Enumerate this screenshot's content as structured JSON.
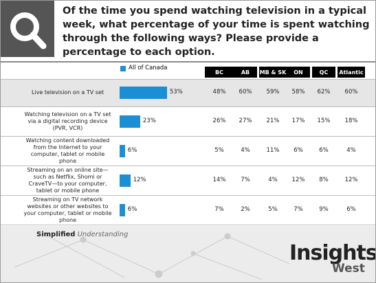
{
  "header": {
    "title": "Of the time you spend watching television in a typical week, what percentage of your time is spent watching through the following ways? Please provide a percentage to each option."
  },
  "chart_data": {
    "type": "bar",
    "orientation": "horizontal",
    "categories": [
      "Live television on a TV set",
      "Watching television on a TV set via a digital recording device (PVR, VCR)",
      "Watching content downloaded from the Internet to your computer, tablet or mobile phone",
      "Streaming on an online site—such as Netflix, Shomi or CraveTV—to your computer, tablet or mobile phone",
      "Streaming on TV network websites or other websites to your computer, tablet or mobile phone"
    ],
    "series": [
      {
        "name": "All of Canada",
        "color": "#1a8fd6",
        "values": [
          53,
          23,
          6,
          12,
          6
        ],
        "value_labels": [
          "53%",
          "23%",
          "6%",
          "12%",
          "6%"
        ]
      }
    ],
    "xlim": [
      0,
      100
    ]
  },
  "table": {
    "columns": [
      "BC",
      "AB",
      "MB & SK",
      "ON",
      "QC",
      "Atlantic"
    ],
    "rows": [
      [
        "48%",
        "60%",
        "59%",
        "58%",
        "62%",
        "60%"
      ],
      [
        "26%",
        "27%",
        "21%",
        "17%",
        "15%",
        "18%"
      ],
      [
        "5%",
        "4%",
        "11%",
        "6%",
        "6%",
        "4%"
      ],
      [
        "14%",
        "7%",
        "4%",
        "12%",
        "8%",
        "12%"
      ],
      [
        "7%",
        "2%",
        "5%",
        "7%",
        "9%",
        "6%"
      ]
    ]
  },
  "footer": {
    "tagline_bold": "Simplified",
    "tagline_italic": "Understanding",
    "logo_main": "Insights",
    "logo_sub": "West"
  }
}
